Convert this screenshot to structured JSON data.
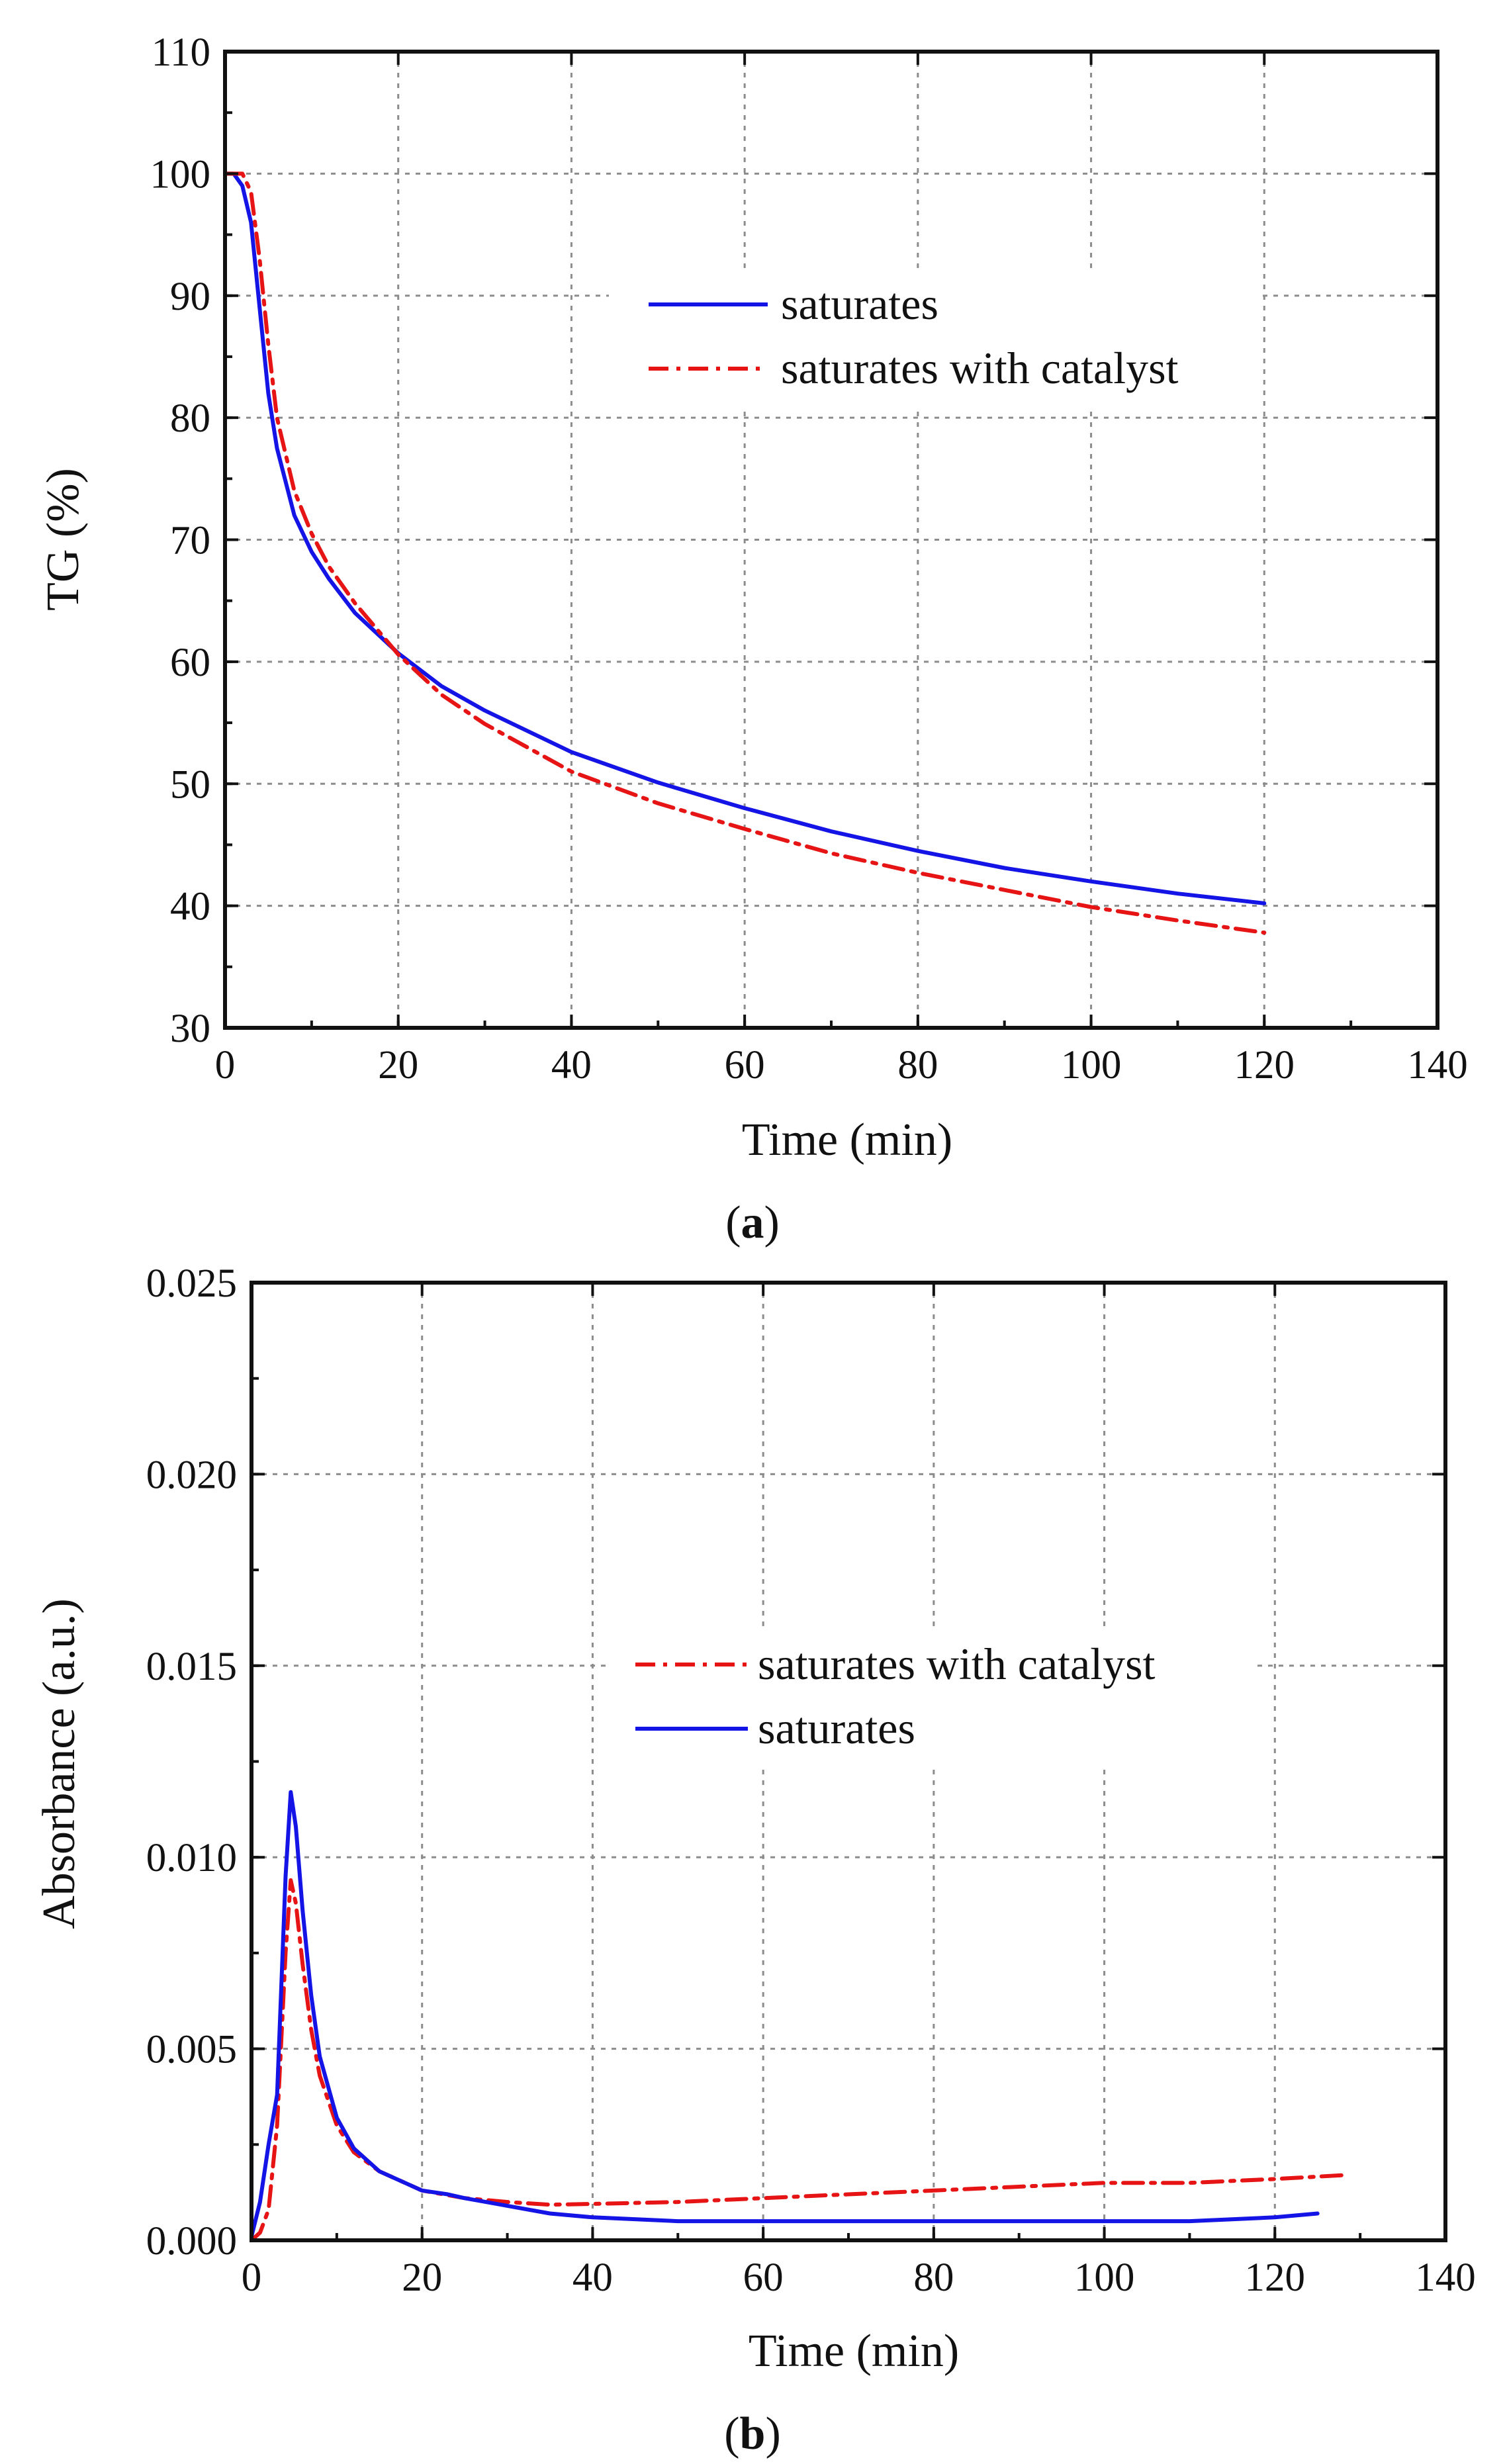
{
  "chart_data": [
    {
      "type": "line",
      "caption_letter": "a",
      "caption_open": "(",
      "caption_close": ")",
      "xlabel": "Time (min)",
      "ylabel": "TG (%)",
      "xlim": [
        0,
        140
      ],
      "ylim": [
        30,
        110
      ],
      "xticks": [
        0,
        20,
        40,
        60,
        80,
        100,
        120,
        140
      ],
      "yticks": [
        30,
        40,
        50,
        60,
        70,
        80,
        90,
        100,
        110
      ],
      "grid": true,
      "legend_position": "upper-right",
      "series": [
        {
          "name": "saturates",
          "color": "#1414e6",
          "style": "solid",
          "x": [
            0,
            1,
            2,
            3,
            4,
            5,
            6,
            8,
            10,
            12,
            15,
            20,
            25,
            30,
            40,
            50,
            60,
            70,
            80,
            90,
            100,
            110,
            120
          ],
          "y": [
            100,
            100,
            99,
            96,
            89,
            82,
            77.5,
            72,
            69,
            66.8,
            64,
            60.7,
            58,
            56,
            52.6,
            50.1,
            48,
            46.1,
            44.5,
            43.1,
            42,
            41,
            40.2
          ]
        },
        {
          "name": "saturates with catalyst",
          "color": "#e61414",
          "style": "dashdot",
          "x": [
            0,
            1,
            2,
            3,
            4,
            5,
            6,
            8,
            10,
            12,
            15,
            20,
            25,
            30,
            40,
            50,
            60,
            70,
            80,
            90,
            100,
            110,
            120
          ],
          "y": [
            100,
            100,
            100,
            98.5,
            93,
            86,
            80,
            74,
            70.5,
            67.8,
            64.8,
            60.6,
            57.3,
            54.9,
            51,
            48.4,
            46.3,
            44.3,
            42.7,
            41.3,
            39.9,
            38.8,
            37.8
          ]
        }
      ]
    },
    {
      "type": "line",
      "caption_letter": "b",
      "caption_open": "(",
      "caption_close": ")",
      "xlabel": "Time (min)",
      "ylabel": "Absorbance (a.u.)",
      "xlim": [
        0,
        140
      ],
      "ylim": [
        0,
        0.025
      ],
      "xticks": [
        0,
        20,
        40,
        60,
        80,
        100,
        120,
        140
      ],
      "yticks": [
        0.0,
        0.005,
        0.01,
        0.015,
        0.02,
        0.025
      ],
      "ytick_labels": [
        "0.000",
        "0.005",
        "0.010",
        "0.015",
        "0.020",
        "0.025"
      ],
      "grid": true,
      "legend_position": "center-right",
      "series": [
        {
          "name": "saturates with catalyst",
          "color": "#e61414",
          "style": "dashdot",
          "x": [
            0,
            1,
            2,
            3,
            4,
            4.6,
            5.2,
            6,
            7,
            8,
            10,
            12,
            15,
            20,
            25,
            30,
            35,
            40,
            50,
            60,
            70,
            80,
            90,
            100,
            110,
            120,
            128
          ],
          "y": [
            0,
            0.0002,
            0.0008,
            0.003,
            0.0075,
            0.0094,
            0.0088,
            0.0072,
            0.0055,
            0.0043,
            0.003,
            0.0023,
            0.0018,
            0.0013,
            0.0011,
            0.001,
            0.00093,
            0.00095,
            0.001,
            0.0011,
            0.0012,
            0.0013,
            0.0014,
            0.0015,
            0.0015,
            0.0016,
            0.0017
          ]
        },
        {
          "name": "saturates",
          "color": "#1414e6",
          "style": "solid",
          "x": [
            0,
            1,
            2,
            3,
            4,
            4.6,
            5.2,
            6,
            7,
            8,
            10,
            12,
            15,
            20,
            23,
            25,
            30,
            35,
            40,
            50,
            60,
            70,
            80,
            90,
            100,
            110,
            120,
            125
          ],
          "y": [
            0.0001,
            0.001,
            0.0025,
            0.0038,
            0.0095,
            0.0117,
            0.0108,
            0.0086,
            0.0064,
            0.0048,
            0.0032,
            0.0024,
            0.0018,
            0.0013,
            0.0012,
            0.0011,
            0.0009,
            0.0007,
            0.0006,
            0.0005,
            0.0005,
            0.0005,
            0.0005,
            0.0005,
            0.0005,
            0.0005,
            0.0006,
            0.0007
          ]
        }
      ]
    }
  ]
}
